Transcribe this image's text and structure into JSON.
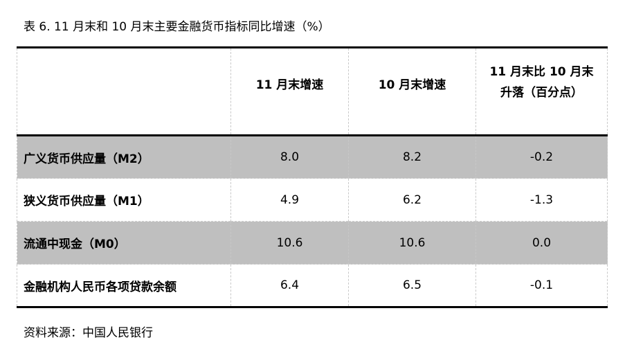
{
  "title": "表 6.   11 月末和 10 月末主要金融货币指标同比增速（%）",
  "table": {
    "headers": [
      "",
      "11 月末增速",
      "10 月末增速",
      "11 月末比 10 月末",
      "升落（百分点）"
    ],
    "rows": [
      {
        "label": "广义货币供应量（M2）",
        "nov": "8.0",
        "oct": "8.2",
        "change": "-0.2",
        "shaded": true
      },
      {
        "label": "狭义货币供应量（M1）",
        "nov": "4.9",
        "oct": "6.2",
        "change": "-1.3",
        "shaded": false
      },
      {
        "label": "流通中现金（M0）",
        "nov": "10.6",
        "oct": "10.6",
        "change": "0.0",
        "shaded": true
      },
      {
        "label": "金融机构人民币各项贷款余额",
        "nov": "6.4",
        "oct": "6.5",
        "change": "-0.1",
        "shaded": false
      }
    ]
  },
  "source": "资料来源：中国人民银行",
  "colors": {
    "shade": "#bfbfbf",
    "rule": "#000000"
  }
}
